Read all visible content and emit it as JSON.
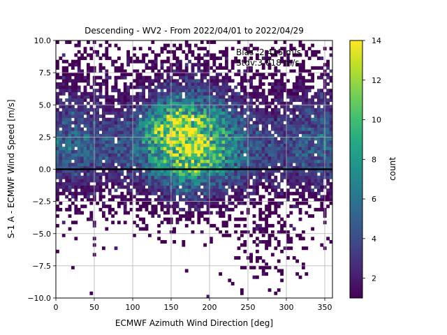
{
  "chart_data": {
    "type": "heatmap",
    "title": "Descending - WV2 - From 2022/04/01 to 2022/04/29",
    "xlabel": "ECMWF Azimuth Wind Direction [deg]",
    "ylabel": "S-1 A - ECMWF Wind Speed [m/s]",
    "xlim": [
      0,
      360
    ],
    "ylim": [
      -10,
      10
    ],
    "xticks": [
      "0",
      "50",
      "100",
      "150",
      "200",
      "250",
      "300",
      "350"
    ],
    "yticks": [
      "−10.0",
      "−7.5",
      "−5.0",
      "−2.5",
      "0.0",
      "2.5",
      "5.0",
      "7.5",
      "10.0"
    ],
    "grid": true,
    "reference_line_y": 0,
    "colorbar": {
      "label": "count",
      "range": [
        1,
        14
      ],
      "ticks": [
        "2",
        "4",
        "6",
        "8",
        "10",
        "12",
        "14"
      ],
      "colormap": "viridis"
    },
    "annotation": [
      "Bias :2.415 m/s",
      "Stdv:3.018 m/s"
    ],
    "bins": {
      "x_bin_width_deg": 4,
      "y_bin_width_ms": 0.25
    }
  }
}
